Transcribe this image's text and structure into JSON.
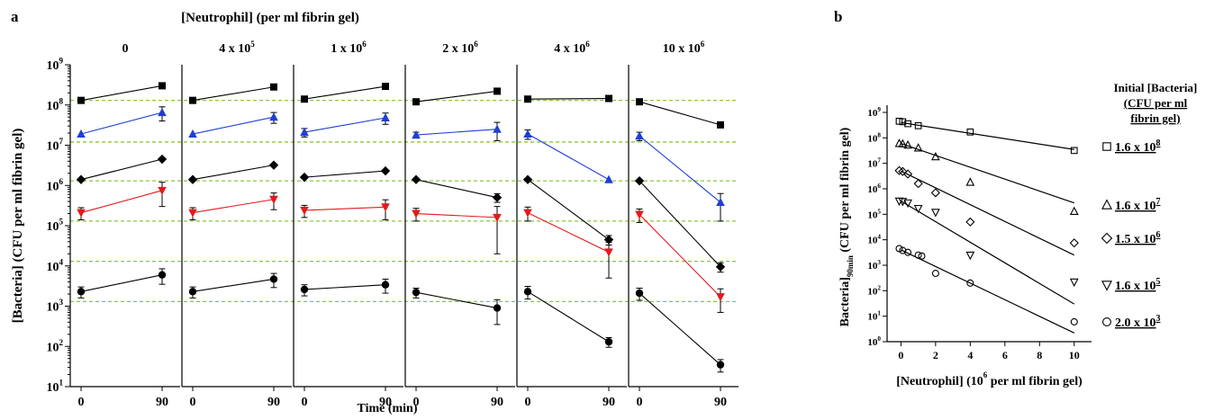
{
  "chart_data": [
    {
      "panel": "a",
      "type": "line",
      "title": "[Neutrophil] (per ml fibrin gel)",
      "xlabel": "Time (min)",
      "ylabel": "[Bacteria] (CFU per ml fibrin gel)",
      "x": [
        0,
        90
      ],
      "yscale": "log",
      "ylim_exp": [
        1,
        9
      ],
      "ytick_exps": [
        1,
        2,
        3,
        4,
        5,
        6,
        7,
        8,
        9
      ],
      "grid": "dashed horizontal reference lines at initial inoculum levels",
      "colors": {
        "black": "#000000",
        "blue": "#1f3fd6",
        "red": "#e41a1c",
        "grid": "#8dc63f"
      },
      "reference_lines": [
        130000000,
        12000000,
        1300000,
        130000,
        13000,
        1300
      ],
      "subpanels": [
        {
          "label": "0",
          "label_exp": "",
          "series": [
            {
              "marker": "square",
              "color": "#000000",
              "values": [
                130000000,
                300000000
              ],
              "err": [
                0,
                0
              ]
            },
            {
              "marker": "triangle-up",
              "color": "#1f3fd6",
              "values": [
                19000000,
                65000000
              ],
              "err": [
                0,
                25000000
              ]
            },
            {
              "marker": "diamond",
              "color": "#000000",
              "values": [
                1400000,
                4500000
              ],
              "err": [
                0,
                0
              ]
            },
            {
              "marker": "triangle-down",
              "color": "#e41a1c",
              "values": [
                210000,
                750000
              ],
              "err": [
                70000,
                450000
              ]
            },
            {
              "marker": "circle",
              "color": "#000000",
              "values": [
                2300,
                6000
              ],
              "err": [
                700,
                2500
              ]
            }
          ]
        },
        {
          "label": "4 x 10",
          "label_exp": "5",
          "series": [
            {
              "marker": "square",
              "color": "#000000",
              "values": [
                130000000,
                280000000
              ],
              "err": [
                0,
                0
              ]
            },
            {
              "marker": "triangle-up",
              "color": "#1f3fd6",
              "values": [
                19000000,
                50000000
              ],
              "err": [
                0,
                15000000
              ]
            },
            {
              "marker": "diamond",
              "color": "#000000",
              "values": [
                1400000,
                3200000
              ],
              "err": [
                0,
                0
              ]
            },
            {
              "marker": "triangle-down",
              "color": "#e41a1c",
              "values": [
                210000,
                450000
              ],
              "err": [
                70000,
                200000
              ]
            },
            {
              "marker": "circle",
              "color": "#000000",
              "values": [
                2300,
                4700
              ],
              "err": [
                700,
                1800
              ]
            }
          ]
        },
        {
          "label": "1 x 10",
          "label_exp": "6",
          "series": [
            {
              "marker": "square",
              "color": "#000000",
              "values": [
                140000000,
                290000000
              ],
              "err": [
                0,
                0
              ]
            },
            {
              "marker": "triangle-up",
              "color": "#1f3fd6",
              "values": [
                21000000,
                48000000
              ],
              "err": [
                5000000,
                15000000
              ]
            },
            {
              "marker": "diamond",
              "color": "#000000",
              "values": [
                1600000,
                2300000
              ],
              "err": [
                0,
                0
              ]
            },
            {
              "marker": "triangle-down",
              "color": "#e41a1c",
              "values": [
                240000,
                290000
              ],
              "err": [
                80000,
                150000
              ]
            },
            {
              "marker": "circle",
              "color": "#000000",
              "values": [
                2600,
                3400
              ],
              "err": [
                800,
                1300
              ]
            }
          ]
        },
        {
          "label": "2 x 10",
          "label_exp": "6",
          "series": [
            {
              "marker": "square",
              "color": "#000000",
              "values": [
                120000000,
                220000000
              ],
              "err": [
                0,
                0
              ]
            },
            {
              "marker": "triangle-up",
              "color": "#1f3fd6",
              "values": [
                18000000,
                25000000
              ],
              "err": [
                3000000,
                12000000
              ]
            },
            {
              "marker": "diamond",
              "color": "#000000",
              "values": [
                1400000,
                500000
              ],
              "err": [
                0,
                120000
              ]
            },
            {
              "marker": "triangle-down",
              "color": "#e41a1c",
              "values": [
                200000,
                160000
              ],
              "err": [
                70000,
                140000
              ]
            },
            {
              "marker": "circle",
              "color": "#000000",
              "values": [
                2200,
                900
              ],
              "err": [
                600,
                550
              ]
            }
          ]
        },
        {
          "label": "4 x 10",
          "label_exp": "6",
          "series": [
            {
              "marker": "square",
              "color": "#000000",
              "values": [
                140000000,
                145000000
              ],
              "err": [
                0,
                0
              ]
            },
            {
              "marker": "triangle-up",
              "color": "#1f3fd6",
              "values": [
                19000000,
                1400000
              ],
              "err": [
                5000000,
                0
              ]
            },
            {
              "marker": "diamond",
              "color": "#000000",
              "values": [
                1400000,
                45000
              ],
              "err": [
                0,
                12000
              ]
            },
            {
              "marker": "triangle-down",
              "color": "#e41a1c",
              "values": [
                210000,
                22000
              ],
              "err": [
                80000,
                17000
              ]
            },
            {
              "marker": "circle",
              "color": "#000000",
              "values": [
                2300,
                130
              ],
              "err": [
                800,
                35
              ]
            }
          ]
        },
        {
          "label": "10 x 10",
          "label_exp": "6",
          "series": [
            {
              "marker": "square",
              "color": "#000000",
              "values": [
                120000000,
                32000000
              ],
              "err": [
                0,
                0
              ]
            },
            {
              "marker": "triangle-up",
              "color": "#1f3fd6",
              "values": [
                17000000,
                380000
              ],
              "err": [
                4000000,
                250000
              ]
            },
            {
              "marker": "diamond",
              "color": "#000000",
              "values": [
                1300000,
                9500
              ],
              "err": [
                0,
                2500
              ]
            },
            {
              "marker": "triangle-down",
              "color": "#e41a1c",
              "values": [
                190000,
                1700
              ],
              "err": [
                70000,
                1000
              ]
            },
            {
              "marker": "circle",
              "color": "#000000",
              "values": [
                2100,
                35
              ],
              "err": [
                700,
                12
              ]
            }
          ]
        }
      ]
    },
    {
      "panel": "b",
      "type": "scatter",
      "xlabel_parts": [
        "[Neutrophil] (10",
        "6",
        " per ml fibrin gel)"
      ],
      "ylabel_parts": [
        "Bacteria]",
        "90min",
        " (CFU per ml fibrin gel)"
      ],
      "xlim": [
        -0.8,
        11
      ],
      "xticks": [
        0,
        2,
        4,
        6,
        8,
        10
      ],
      "yscale": "log",
      "ylim_exp": [
        0,
        9
      ],
      "ytick_exps": [
        0,
        1,
        2,
        3,
        4,
        5,
        6,
        7,
        8,
        9
      ],
      "legend": {
        "title_lines": [
          "Initial [Bacteria]",
          "(CFU per ml",
          "fibrin gel)"
        ],
        "entries": [
          {
            "marker": "square",
            "mantissa": "1.6 x 10",
            "exp": "8"
          },
          {
            "marker": "triangle-up",
            "mantissa": "1.6 x 10",
            "exp": "7"
          },
          {
            "marker": "diamond",
            "mantissa": "1.5 x 10",
            "exp": "6"
          },
          {
            "marker": "triangle-down",
            "mantissa": "1.6 x 10",
            "exp": "5"
          },
          {
            "marker": "circle",
            "mantissa": "2.0 x 10",
            "exp": "3"
          }
        ]
      },
      "series": [
        {
          "marker": "square",
          "points": [
            [
              -0.1,
              450000000
            ],
            [
              0.1,
              430000000
            ],
            [
              0.4,
              360000000
            ],
            [
              1,
              300000000
            ],
            [
              4,
              170000000
            ],
            [
              10,
              32000000
            ]
          ],
          "fit": [
            [
              0,
              400000000
            ],
            [
              10,
              35000000
            ]
          ]
        },
        {
          "marker": "triangle-up",
          "points": [
            [
              -0.1,
              60000000
            ],
            [
              0.1,
              58000000
            ],
            [
              0.4,
              52000000
            ],
            [
              1,
              40000000
            ],
            [
              2,
              18000000
            ],
            [
              4,
              1800000
            ],
            [
              10,
              130000
            ]
          ],
          "fit": [
            [
              0,
              60000000
            ],
            [
              10,
              280000
            ]
          ]
        },
        {
          "marker": "diamond",
          "points": [
            [
              -0.1,
              5200000
            ],
            [
              0.1,
              4800000
            ],
            [
              0.4,
              3800000
            ],
            [
              1,
              1600000
            ],
            [
              2,
              700000
            ],
            [
              4,
              50000
            ],
            [
              10,
              7500
            ]
          ],
          "fit": [
            [
              0,
              5000000
            ],
            [
              10,
              2500
            ]
          ]
        },
        {
          "marker": "triangle-down",
          "points": [
            [
              -0.1,
              330000
            ],
            [
              0.1,
              320000
            ],
            [
              0.4,
              280000
            ],
            [
              1,
              170000
            ],
            [
              2,
              120000
            ],
            [
              4,
              2500
            ],
            [
              10,
              220
            ]
          ],
          "fit": [
            [
              0,
              330000
            ],
            [
              10,
              30
            ]
          ]
        },
        {
          "marker": "circle",
          "points": [
            [
              -0.1,
              4500
            ],
            [
              0.1,
              3800
            ],
            [
              0.4,
              3200
            ],
            [
              1,
              2500
            ],
            [
              1.2,
              2300
            ],
            [
              2,
              480
            ],
            [
              4,
              200
            ],
            [
              10,
              6
            ]
          ],
          "fit": [
            [
              0,
              4000
            ],
            [
              10,
              2.2
            ]
          ]
        }
      ]
    }
  ]
}
